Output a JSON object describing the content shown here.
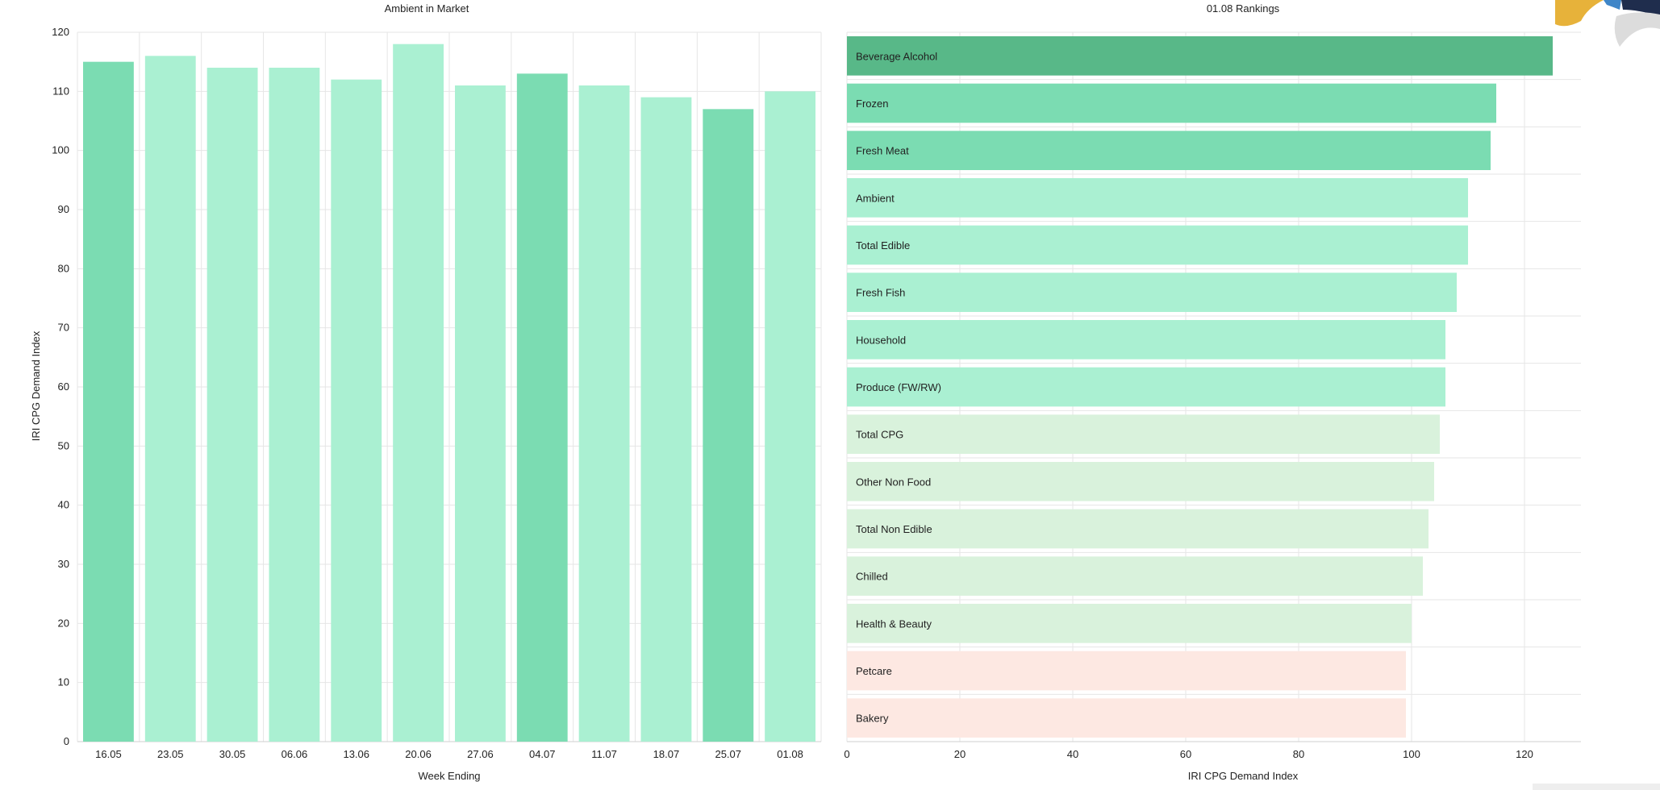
{
  "colors": {
    "dark": "#58b888",
    "medium": "#7bdcb2",
    "light": "#aaf0d2",
    "pale": "#d9f2dc",
    "salmon": "#fde8e2",
    "grid": "#e6e6e6",
    "text": "#222222"
  },
  "chart_data": [
    {
      "type": "bar",
      "orientation": "vertical",
      "title": "Ambient in Market",
      "xlabel": "Week Ending",
      "ylabel": "IRI CPG Demand Index",
      "ylim": [
        0,
        120
      ],
      "yticks": [
        0,
        10,
        20,
        30,
        40,
        50,
        60,
        70,
        80,
        90,
        100,
        110,
        120
      ],
      "grid": true,
      "categories": [
        "16.05",
        "23.05",
        "30.05",
        "06.06",
        "13.06",
        "20.06",
        "27.06",
        "04.07",
        "11.07",
        "18.07",
        "25.07",
        "01.08"
      ],
      "values": [
        115,
        116,
        114,
        114,
        112,
        118,
        111,
        113,
        111,
        109,
        107,
        110
      ],
      "bar_colors": [
        "medium",
        "light",
        "light",
        "light",
        "light",
        "light",
        "light",
        "medium",
        "light",
        "light",
        "medium",
        "light"
      ]
    },
    {
      "type": "bar",
      "orientation": "horizontal",
      "title": "01.08 Rankings",
      "xlabel": "IRI CPG Demand Index",
      "ylabel": "",
      "xlim": [
        0,
        130
      ],
      "xticks": [
        0,
        20,
        40,
        60,
        80,
        100,
        120
      ],
      "grid": true,
      "categories": [
        "Beverage Alcohol",
        "Frozen",
        "Fresh Meat",
        "Ambient",
        "Total Edible",
        "Fresh Fish",
        "Household",
        "Produce (FW/RW)",
        "Total CPG",
        "Other Non Food",
        "Total Non Edible",
        "Chilled",
        "Health & Beauty",
        "Petcare",
        "Bakery"
      ],
      "values": [
        125,
        115,
        114,
        110,
        110,
        108,
        106,
        106,
        105,
        104,
        103,
        102,
        100,
        99,
        99
      ],
      "bar_colors": [
        "dark",
        "medium",
        "medium",
        "light",
        "light",
        "light",
        "light",
        "light",
        "pale",
        "pale",
        "pale",
        "pale",
        "pale",
        "salmon",
        "salmon"
      ]
    }
  ]
}
